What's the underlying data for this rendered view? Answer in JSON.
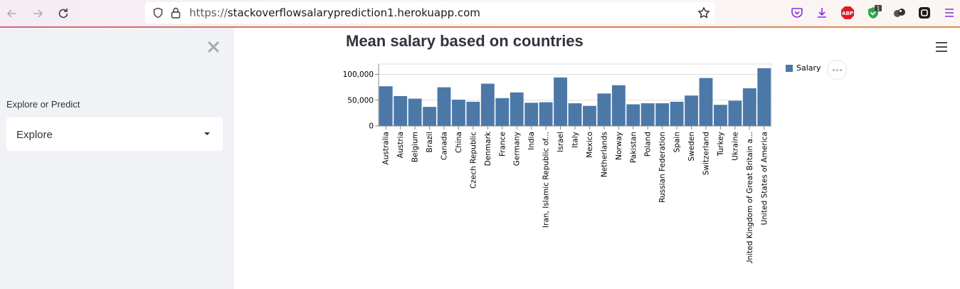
{
  "browser": {
    "url_scheme": "https://",
    "url_host": "stackoverflowsalaryprediction1.herokuapp.com",
    "ext_badge": "1",
    "abp_label": "ABP"
  },
  "sidebar": {
    "label": "Explore or Predict",
    "select_value": "Explore"
  },
  "main": {
    "title": "Mean salary based on countries"
  },
  "colors": {
    "bar": "#4c78a8",
    "sidebar_bg": "#f0f2f6"
  },
  "chart_data": {
    "type": "bar",
    "categories": [
      "Australia",
      "Austria",
      "Belgium",
      "Brazil",
      "Canada",
      "China",
      "Czech Republic",
      "Denmark",
      "France",
      "Germany",
      "India",
      "Iran, Islamic Republic of...",
      "Israel",
      "Italy",
      "Mexico",
      "Netherlands",
      "Norway",
      "Pakistan",
      "Poland",
      "Russian Federation",
      "Spain",
      "Sweden",
      "Switzerland",
      "Turkey",
      "Ukraine",
      "United Kingdom of Great Britain a...",
      "United States of America"
    ],
    "series": [
      {
        "name": "Salary",
        "values": [
          77000,
          58000,
          53000,
          37000,
          75000,
          51000,
          47000,
          82000,
          54000,
          65000,
          45000,
          46000,
          94000,
          44000,
          39000,
          63000,
          79000,
          42000,
          44000,
          44000,
          47000,
          59000,
          93000,
          41000,
          49000,
          73000,
          112000
        ]
      }
    ],
    "yticks": [
      "0",
      "50,000",
      "100,000"
    ],
    "ylim": [
      0,
      120000
    ],
    "legend_position": "right",
    "grid": true
  }
}
